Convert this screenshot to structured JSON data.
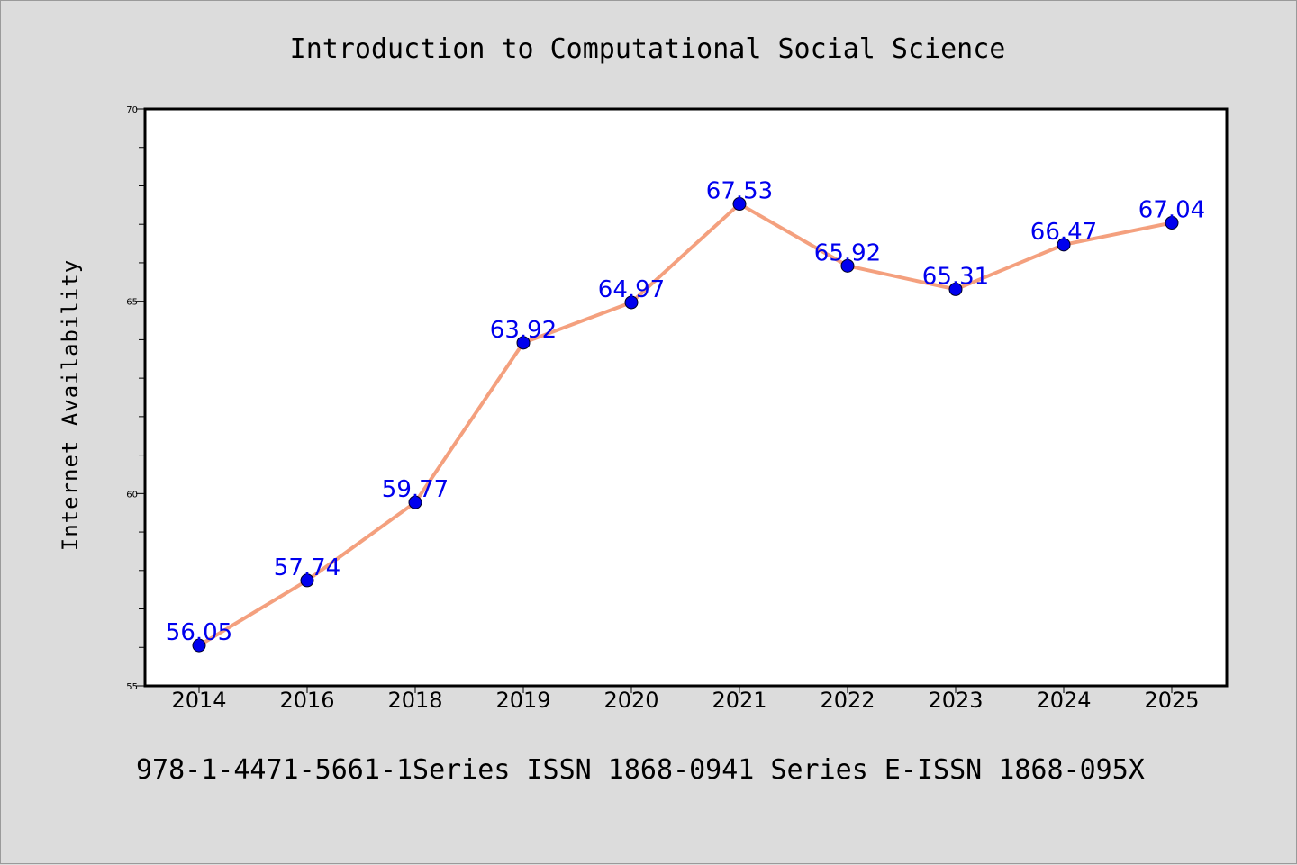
{
  "chart_data": {
    "type": "line",
    "title": "Introduction to Computational Social Science",
    "ylabel": "Internet Availability",
    "xlabel": "",
    "categories": [
      "2014",
      "2016",
      "2018",
      "2019",
      "2020",
      "2021",
      "2022",
      "2023",
      "2024",
      "2025"
    ],
    "series": [
      {
        "values": [
          56.05,
          57.74,
          59.77,
          63.92,
          64.97,
          67.53,
          65.92,
          65.31,
          66.47,
          67.04
        ]
      }
    ],
    "data_labels": [
      "56.05",
      "57.74",
      "59.77",
      "63.92",
      "64.97",
      "67.53",
      "65.92",
      "65.31",
      "66.47",
      "67.04"
    ],
    "ylim": [
      55,
      70
    ],
    "yticks": [
      "55",
      "60",
      "65",
      "70"
    ],
    "ytick_values": [
      55,
      60,
      65,
      70
    ],
    "minor_tick_step": 1,
    "grid": false,
    "footer": "978-1-4471-5661-1Series ISSN 1868-0941 Series E-ISSN 1868-095X",
    "colors": {
      "background": "#dcdcdc",
      "plot_background": "#ffffff",
      "line": "#f4a07e",
      "marker": "#0000ee",
      "data_label": "#0000ee"
    }
  }
}
